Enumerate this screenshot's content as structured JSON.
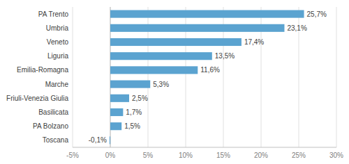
{
  "chart_data": {
    "type": "bar",
    "orientation": "horizontal",
    "categories": [
      "Toscana",
      "PA Bolzano",
      "Basilicata",
      "Friuli-Venezia Giulia",
      "Marche",
      "Emilia-Romagna",
      "Liguria",
      "Veneto",
      "Umbria",
      "PA Trento"
    ],
    "values": [
      -0.1,
      1.5,
      1.7,
      2.5,
      5.3,
      11.6,
      13.5,
      17.4,
      23.1,
      25.7
    ],
    "value_labels": [
      "-0,1%",
      "1,5%",
      "1,7%",
      "2,5%",
      "5,3%",
      "11,6%",
      "13,5%",
      "17,4%",
      "23,1%",
      "25,7%"
    ],
    "color": "#5ba3d0",
    "xlim": [
      -5,
      30
    ],
    "xticks": [
      {
        "value": -5,
        "label": "-5%"
      },
      {
        "value": 0,
        "label": "0%"
      },
      {
        "value": 5,
        "label": "5%"
      },
      {
        "value": 10,
        "label": "10%"
      },
      {
        "value": 15,
        "label": "15%"
      },
      {
        "value": 20,
        "label": "20%"
      },
      {
        "value": 25,
        "label": "25%"
      },
      {
        "value": 30,
        "label": "30%"
      }
    ],
    "grid": true,
    "data_labels": true
  }
}
